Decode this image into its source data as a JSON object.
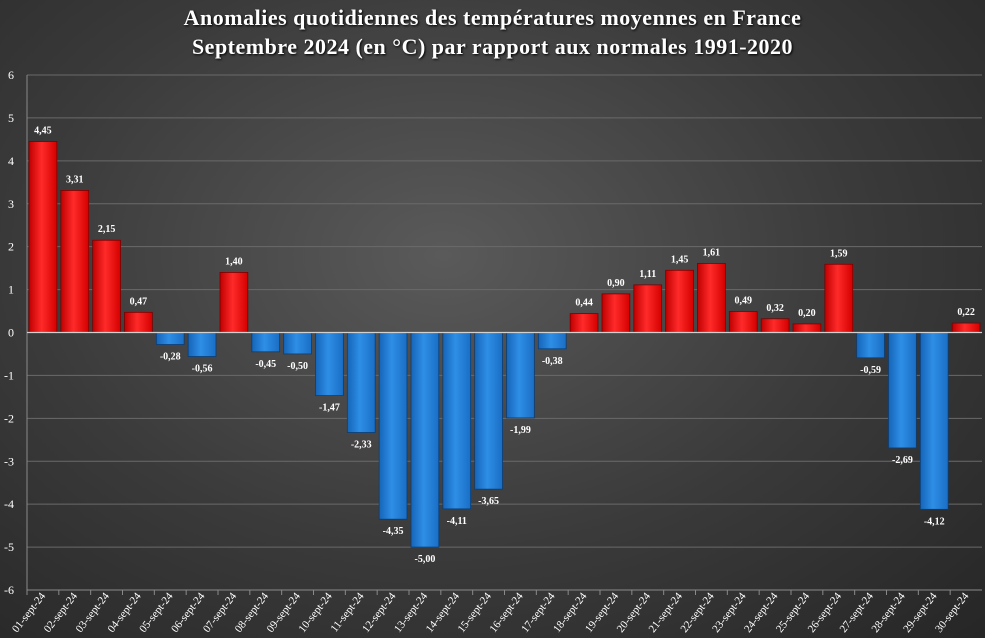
{
  "chart_data": {
    "type": "bar",
    "title": "Anomalies quotidiennes des températures moyennes en France",
    "subtitle": "Septembre 2024 (en °C) par rapport aux normales 1991-2020",
    "categories": [
      "01-sept-24",
      "02-sept-24",
      "03-sept-24",
      "04-sept-24",
      "05-sept-24",
      "06-sept-24",
      "07-sept-24",
      "08-sept-24",
      "09-sept-24",
      "10-sept-24",
      "11-sept-24",
      "12-sept-24",
      "13-sept-24",
      "14-sept-24",
      "15-sept-24",
      "16-sept-24",
      "17-sept-24",
      "18-sept-24",
      "19-sept-24",
      "20-sept-24",
      "21-sept-24",
      "22-sept-24",
      "23-sept-24",
      "24-sept-24",
      "25-sept-24",
      "26-sept-24",
      "27-sept-24",
      "28-sept-24",
      "29-sept-24",
      "30-sept-24"
    ],
    "values": [
      4.45,
      3.31,
      2.15,
      0.47,
      -0.28,
      -0.56,
      1.4,
      -0.45,
      -0.5,
      -1.47,
      -2.33,
      -4.35,
      -5.0,
      -4.11,
      -3.65,
      -1.99,
      -0.38,
      0.44,
      0.9,
      1.11,
      1.45,
      1.61,
      0.49,
      0.32,
      0.2,
      1.59,
      -0.59,
      -2.69,
      -4.12,
      0.22
    ],
    "value_labels": [
      "4,45",
      "3,31",
      "2,15",
      "0,47",
      "-0,28",
      "-0,56",
      "1,40",
      "-0,45",
      "-0,50",
      "-1,47",
      "-2,33",
      "-4,35",
      "-5,00",
      "-4,11",
      "-3,65",
      "-1,99",
      "-0,38",
      "0,44",
      "0,90",
      "1,11",
      "1,45",
      "1,61",
      "0,49",
      "0,32",
      "0,20",
      "1,59",
      "-0,59",
      "-2,69",
      "-4,12",
      "0,22"
    ],
    "yticks": [
      -6,
      -5,
      -4,
      -3,
      -2,
      -1,
      0,
      1,
      2,
      3,
      4,
      5,
      6
    ],
    "ylim": [
      -6,
      6
    ],
    "grid": true,
    "legend": "none",
    "colors": {
      "positive": "#ff1a1a",
      "negative": "#1f7fd9",
      "grid": "#6a6a6a",
      "text": "#ffffff"
    }
  }
}
